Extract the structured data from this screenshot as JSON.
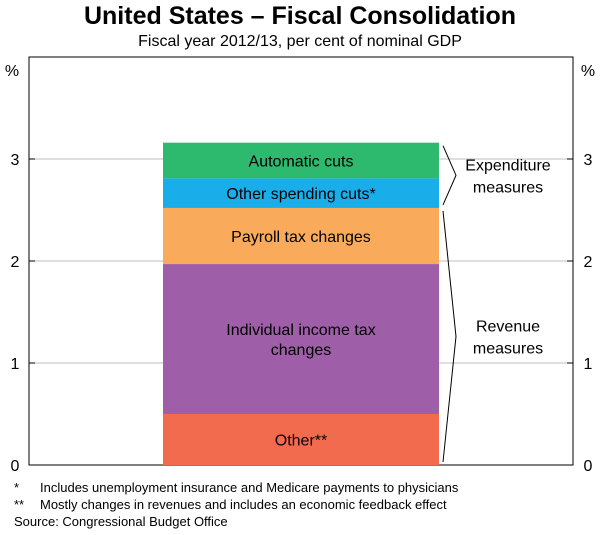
{
  "chart_data": {
    "type": "bar",
    "title": "United States – Fiscal Consolidation",
    "subtitle": "Fiscal year 2012/13, per cent of nominal GDP",
    "ylabel": "%",
    "ylim": [
      0,
      4
    ],
    "yticks": [
      0,
      1,
      2,
      3
    ],
    "grid": true,
    "segments": [
      {
        "name": "Other**",
        "value": 0.5,
        "color": "#f26b4e"
      },
      {
        "name": "Individual income tax changes",
        "label_lines": [
          "Individual income tax",
          "changes"
        ],
        "value": 1.47,
        "color": "#9e5ea8"
      },
      {
        "name": "Payroll tax changes",
        "value": 0.55,
        "color": "#f9aa5b"
      },
      {
        "name": "Other spending cuts*",
        "value": 0.29,
        "color": "#19aeea"
      },
      {
        "name": "Automatic cuts",
        "value": 0.35,
        "color": "#2dba6e"
      }
    ],
    "groups": [
      {
        "label_lines": [
          "Expenditure",
          "measures"
        ],
        "members": [
          "Automatic cuts",
          "Other spending cuts*"
        ]
      },
      {
        "label_lines": [
          "Revenue",
          "measures"
        ],
        "members": [
          "Other**",
          "Individual income tax changes",
          "Payroll tax changes"
        ]
      }
    ]
  },
  "notes": [
    {
      "mark": "*",
      "text": "Includes unemployment insurance and Medicare payments to physicians"
    },
    {
      "mark": "**",
      "text": "Mostly changes in revenues and includes an economic feedback effect"
    }
  ],
  "source": "Source: Congressional Budget Office"
}
